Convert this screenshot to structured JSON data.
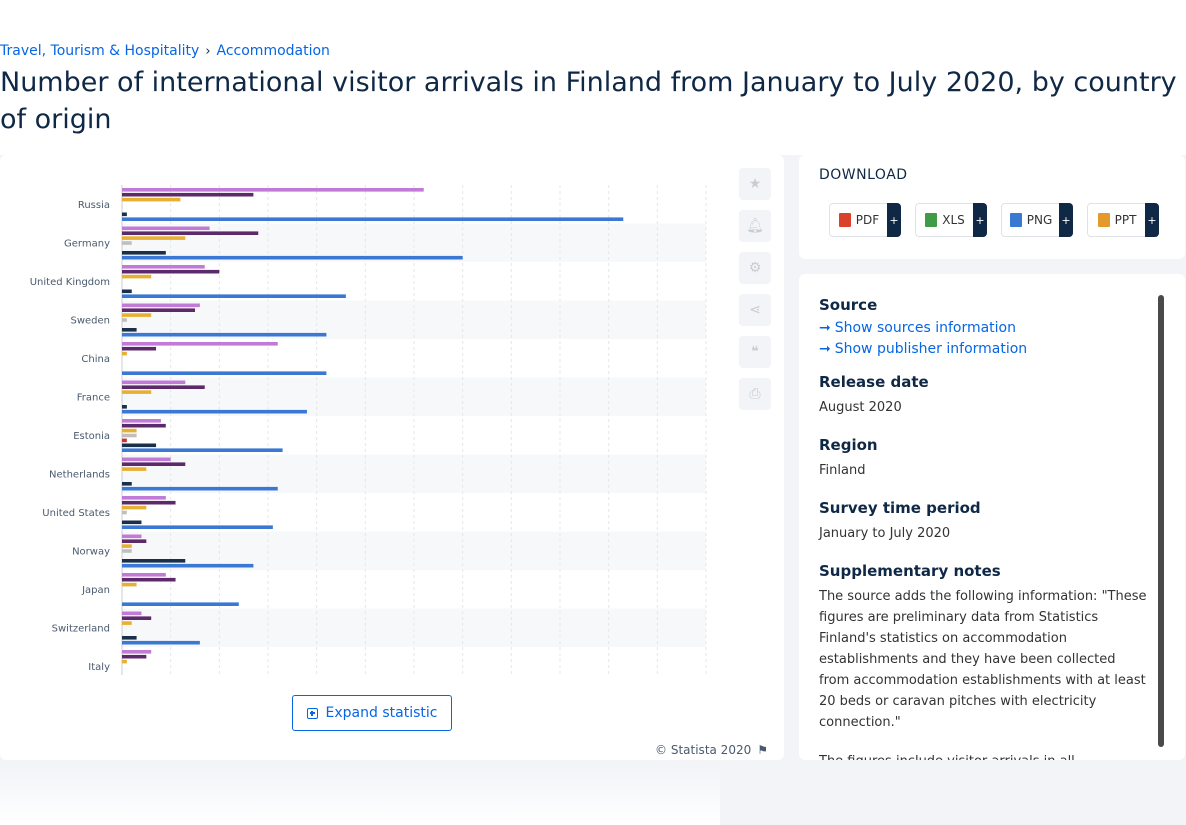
{
  "breadcrumb": {
    "items": [
      "Travel, Tourism & Hospitality",
      "Accommodation"
    ],
    "separator": "›"
  },
  "page_title": "Number of international visitor arrivals in Finland from January to July 2020, by country of origin",
  "chart": {
    "expand_label": "Expand statistic",
    "credit": "© Statista 2020",
    "toolbar_icons": [
      "star-icon",
      "bell-icon",
      "gear-icon",
      "share-icon",
      "quote-icon",
      "print-icon"
    ]
  },
  "chart_data": {
    "type": "bar",
    "orientation": "horizontal",
    "grid": true,
    "categories": [
      "Russia",
      "Germany",
      "United Kingdom",
      "Sweden",
      "China",
      "France",
      "Estonia",
      "Netherlands",
      "United States",
      "Norway",
      "Japan",
      "Switzerland",
      "Italy"
    ],
    "series_colors": [
      "#c17ad6",
      "#5c2a6b",
      "#e7b033",
      "#bfbfbf",
      "#cc3333",
      "#1a2f4a",
      "#3a78d4"
    ],
    "series": [
      {
        "values": [
          62,
          18,
          17,
          16,
          32,
          13,
          8,
          10,
          9,
          4,
          9,
          4,
          6
        ]
      },
      {
        "values": [
          27,
          28,
          20,
          15,
          7,
          17,
          9,
          13,
          11,
          5,
          11,
          6,
          5
        ]
      },
      {
        "values": [
          12,
          13,
          6,
          6,
          1,
          6,
          3,
          5,
          5,
          2,
          3,
          2,
          1
        ]
      },
      {
        "values": [
          0,
          2,
          0,
          1,
          0,
          0,
          3,
          0,
          1,
          2,
          0,
          0,
          0
        ]
      },
      {
        "values": [
          0,
          0,
          0,
          0,
          0,
          0,
          1,
          0,
          0,
          0,
          0,
          0,
          0
        ]
      },
      {
        "values": [
          1,
          9,
          2,
          3,
          0,
          1,
          7,
          2,
          4,
          13,
          0,
          3,
          0
        ]
      },
      {
        "values": [
          103,
          70,
          46,
          42,
          42,
          38,
          33,
          32,
          31,
          27,
          24,
          16,
          0
        ]
      }
    ],
    "xlim": [
      0,
      120
    ]
  },
  "download": {
    "title": "DOWNLOAD",
    "buttons": [
      {
        "label": "PDF",
        "icon": "pdf-file-icon",
        "color": "#d9412b"
      },
      {
        "label": "XLS",
        "icon": "xls-file-icon",
        "color": "#3f9b46"
      },
      {
        "label": "PNG",
        "icon": "png-file-icon",
        "color": "#3a78d4"
      },
      {
        "label": "PPT",
        "icon": "ppt-file-icon",
        "color": "#e39a2a"
      }
    ],
    "plus": "+"
  },
  "info": {
    "source_heading": "Source",
    "show_sources": "Show sources information",
    "show_publisher": "Show publisher information",
    "release_heading": "Release date",
    "release_value": "August 2020",
    "region_heading": "Region",
    "region_value": "Finland",
    "survey_heading": "Survey time period",
    "survey_value": "January to July 2020",
    "notes_heading": "Supplementary notes",
    "notes_p1": "The source adds the following information: \"These figures are preliminary data from Statistics Finland's statistics on accommodation establishments and they have been collected from accommodation establishments with at least 20 beds or caravan pitches with electricity connection.\"",
    "notes_p2": "The figures include visitor arrivals in all accommodation establishments by country of origin."
  }
}
